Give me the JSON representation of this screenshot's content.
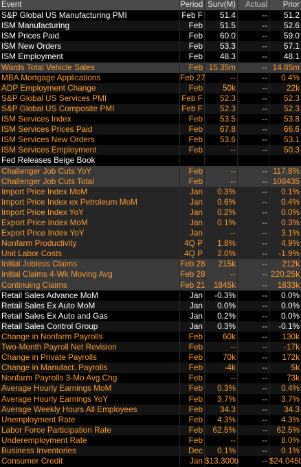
{
  "columns": {
    "event": "Event",
    "period": "Period",
    "survey": "Surv(M)",
    "actual": "Actual",
    "prior": "Prior"
  },
  "rows": [
    {
      "event": "S&P Global US Manufacturing PMI",
      "period": "Feb F",
      "survey": "51.4",
      "actual": "--",
      "prior": "51.2",
      "style": "white",
      "bg": "a"
    },
    {
      "event": "ISM Manufacturing",
      "period": "Feb",
      "survey": "51.5",
      "actual": "--",
      "prior": "52.6",
      "style": "white",
      "bg": "b"
    },
    {
      "event": "ISM Prices Paid",
      "period": "Feb",
      "survey": "60.0",
      "actual": "--",
      "prior": "59.0",
      "style": "white",
      "bg": "a"
    },
    {
      "event": "ISM New Orders",
      "period": "Feb",
      "survey": "53.3",
      "actual": "--",
      "prior": "57.1",
      "style": "white",
      "bg": "b"
    },
    {
      "event": "ISM Employment",
      "period": "Feb",
      "survey": "48.3",
      "actual": "--",
      "prior": "48.1",
      "style": "white",
      "bg": "a"
    },
    {
      "event": "Wards Total Vehicle Sales",
      "period": "Feb",
      "survey": "15.35m",
      "actual": "--",
      "prior": "14.85m",
      "style": "orange",
      "bg": "hl"
    },
    {
      "event": "MBA Mortgage Applications",
      "period": "Feb 27",
      "survey": "--",
      "actual": "--",
      "prior": "0.4%",
      "style": "orange",
      "bg": "a"
    },
    {
      "event": "ADP Employment Change",
      "period": "Feb",
      "survey": "50k",
      "actual": "--",
      "prior": "22k",
      "style": "orange",
      "bg": "b"
    },
    {
      "event": "S&P Global US Services PMI",
      "period": "Feb F",
      "survey": "52.3",
      "actual": "--",
      "prior": "52.3",
      "style": "orange",
      "bg": "a"
    },
    {
      "event": "S&P Global US Composite PMI",
      "period": "Feb F",
      "survey": "52.3",
      "actual": "--",
      "prior": "52.3",
      "style": "orange",
      "bg": "b"
    },
    {
      "event": "ISM Services Index",
      "period": "Feb",
      "survey": "53.5",
      "actual": "--",
      "prior": "53.8",
      "style": "orange",
      "bg": "a"
    },
    {
      "event": "ISM Services Prices Paid",
      "period": "Feb",
      "survey": "67.8",
      "actual": "--",
      "prior": "66.6",
      "style": "orange",
      "bg": "b"
    },
    {
      "event": "ISM Services New Orders",
      "period": "Feb",
      "survey": "53.6",
      "actual": "--",
      "prior": "53.1",
      "style": "orange",
      "bg": "a"
    },
    {
      "event": "ISM Services Employment",
      "period": "Feb",
      "survey": "--",
      "actual": "--",
      "prior": "50.3",
      "style": "orange",
      "bg": "b"
    },
    {
      "event": "Fed Releases Beige Book",
      "period": "",
      "survey": "",
      "actual": "",
      "prior": "",
      "style": "white",
      "bg": "a"
    },
    {
      "event": "Challenger Job Cuts YoY",
      "period": "Feb",
      "survey": "--",
      "actual": "--",
      "prior": "117.8%",
      "style": "orange",
      "bg": "hl"
    },
    {
      "event": "Challenger Job Cuts Total",
      "period": "Feb",
      "survey": "--",
      "actual": "--",
      "prior": "108435",
      "style": "orange",
      "bg": "hl"
    },
    {
      "event": "Import Price Index MoM",
      "period": "Jan",
      "survey": "0.3%",
      "actual": "--",
      "prior": "0.1%",
      "style": "orange",
      "bg": "mid"
    },
    {
      "event": "Import Price Index ex Petroleum MoM",
      "period": "Jan",
      "survey": "0.6%",
      "actual": "--",
      "prior": "0.4%",
      "style": "orange",
      "bg": "mid"
    },
    {
      "event": "Import Price Index YoY",
      "period": "Jan",
      "survey": "0.2%",
      "actual": "--",
      "prior": "0.0%",
      "style": "orange",
      "bg": "mid"
    },
    {
      "event": "Export Price Index MoM",
      "period": "Jan",
      "survey": "0.1%",
      "actual": "--",
      "prior": "0.3%",
      "style": "orange",
      "bg": "mid"
    },
    {
      "event": "Export Price Index YoY",
      "period": "Jan",
      "survey": "--",
      "actual": "--",
      "prior": "3.1%",
      "style": "orange",
      "bg": "mid"
    },
    {
      "event": "Nonfarm Productivity",
      "period": "4Q P",
      "survey": "1.8%",
      "actual": "--",
      "prior": "4.9%",
      "style": "orange",
      "bg": "mid"
    },
    {
      "event": "Unit Labor Costs",
      "period": "4Q P",
      "survey": "2.0%",
      "actual": "--",
      "prior": "-1.9%",
      "style": "orange",
      "bg": "mid"
    },
    {
      "event": "Initial Jobless Claims",
      "period": "Feb 28",
      "survey": "215k",
      "actual": "--",
      "prior": "212k",
      "style": "orange",
      "bg": "hl"
    },
    {
      "event": "Initial Claims 4-Wk Moving Avg",
      "period": "Feb 28",
      "survey": "--",
      "actual": "--",
      "prior": "220.25k",
      "style": "orange",
      "bg": "hl"
    },
    {
      "event": "Continuing Claims",
      "period": "Feb 21",
      "survey": "1845k",
      "actual": "--",
      "prior": "1833k",
      "style": "orange",
      "bg": "hl"
    },
    {
      "event": "Retail Sales Advance MoM",
      "period": "Jan",
      "survey": "-0.3%",
      "actual": "--",
      "prior": "0.0%",
      "style": "white",
      "bg": "a"
    },
    {
      "event": "Retail Sales Ex Auto MoM",
      "period": "Jan",
      "survey": "0.0%",
      "actual": "--",
      "prior": "0.0%",
      "style": "white",
      "bg": "b"
    },
    {
      "event": "Retail Sales Ex Auto and Gas",
      "period": "Jan",
      "survey": "0.2%",
      "actual": "--",
      "prior": "0.0%",
      "style": "white",
      "bg": "a"
    },
    {
      "event": "Retail Sales Control Group",
      "period": "Jan",
      "survey": "0.3%",
      "actual": "--",
      "prior": "-0.1%",
      "style": "white",
      "bg": "b"
    },
    {
      "event": "Change in Nonfarm Payrolls",
      "period": "Feb",
      "survey": "60k",
      "actual": "--",
      "prior": "130k",
      "style": "orange",
      "bg": "a"
    },
    {
      "event": "Two-Month Payroll Net Revision",
      "period": "Feb",
      "survey": "--",
      "actual": "--",
      "prior": "-17k",
      "style": "orange",
      "bg": "b"
    },
    {
      "event": "Change in Private Payrolls",
      "period": "Feb",
      "survey": "70k",
      "actual": "--",
      "prior": "172k",
      "style": "orange",
      "bg": "a"
    },
    {
      "event": "Change in Manufact. Payrolls",
      "period": "Feb",
      "survey": "-4k",
      "actual": "--",
      "prior": "5k",
      "style": "orange",
      "bg": "b"
    },
    {
      "event": "Nonfarm Payrolls 3-Mo Avg Chg",
      "period": "Feb",
      "survey": "--",
      "actual": "--",
      "prior": "73k",
      "style": "orange",
      "bg": "a"
    },
    {
      "event": "Average Hourly Earnings MoM",
      "period": "Feb",
      "survey": "0.3%",
      "actual": "--",
      "prior": "0.4%",
      "style": "orange",
      "bg": "b"
    },
    {
      "event": "Average Hourly Earnings YoY",
      "period": "Feb",
      "survey": "3.7%",
      "actual": "--",
      "prior": "3.7%",
      "style": "orange",
      "bg": "a"
    },
    {
      "event": "Average Weekly Hours All Employees",
      "period": "Feb",
      "survey": "34.3",
      "actual": "--",
      "prior": "34.3",
      "style": "orange",
      "bg": "b"
    },
    {
      "event": "Unemployment Rate",
      "period": "Feb",
      "survey": "4.3%",
      "actual": "--",
      "prior": "4.3%",
      "style": "orange",
      "bg": "a"
    },
    {
      "event": "Labor Force Participation Rate",
      "period": "Feb",
      "survey": "62.5%",
      "actual": "--",
      "prior": "62.5%",
      "style": "orange",
      "bg": "b"
    },
    {
      "event": "Underemployment Rate",
      "period": "Feb",
      "survey": "--",
      "actual": "--",
      "prior": "8.0%",
      "style": "orange",
      "bg": "a"
    },
    {
      "event": "Business Inventories",
      "period": "Dec",
      "survey": "0.1%",
      "actual": "--",
      "prior": "0.1%",
      "style": "orange",
      "bg": "b"
    },
    {
      "event": "Consumer Credit",
      "period": "Jan",
      "survey": "$13.300b",
      "actual": "--",
      "prior": "$24.045b",
      "style": "orange",
      "bg": "a"
    }
  ]
}
